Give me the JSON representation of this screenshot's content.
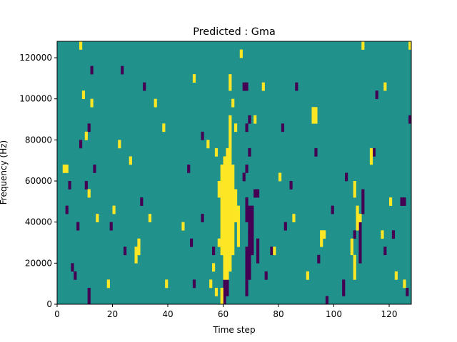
{
  "chart_data": {
    "type": "heatmap",
    "title": "Predicted : Gma",
    "xlabel": "Time step",
    "ylabel": "Frequency (Hz)",
    "xlim": [
      0,
      128
    ],
    "ylim": [
      0,
      128000
    ],
    "x_ticks": [
      0,
      20,
      40,
      60,
      80,
      100,
      120
    ],
    "y_ticks": [
      0,
      20000,
      40000,
      60000,
      80000,
      100000,
      120000
    ],
    "x_tick_labels": [
      "0",
      "20",
      "40",
      "60",
      "80",
      "100",
      "120"
    ],
    "y_tick_labels": [
      "0",
      "20000",
      "40000",
      "60000",
      "80000",
      "100000",
      "120000"
    ],
    "grid": false,
    "colormap": "viridis",
    "background_color": "#21918c",
    "colors": {
      "low": "#440154",
      "mid": "#21918c",
      "high": "#fde725"
    },
    "cell_height_hz": 4000,
    "band_low": [
      {
        "t": 60,
        "f0": 0,
        "f1": 12000
      },
      {
        "t": 61,
        "f0": 4000,
        "f1": 12000
      },
      {
        "t": 68,
        "f0": 4000,
        "f1": 28000
      },
      {
        "t": 69,
        "f0": 12000,
        "f1": 48000
      },
      {
        "t": 69,
        "f0": 20000,
        "f1": 36000
      },
      {
        "t": 70,
        "f0": 24000,
        "f1": 48000
      },
      {
        "t": 68,
        "f0": 40000,
        "f1": 52000
      },
      {
        "t": 71,
        "f0": 52000,
        "f1": 56000
      },
      {
        "t": 72,
        "f0": 52000,
        "f1": 56000
      },
      {
        "t": 72,
        "f0": 20000,
        "f1": 32000
      },
      {
        "t": 67,
        "f0": 60000,
        "f1": 64000
      },
      {
        "t": 68,
        "f0": 64000,
        "f1": 68000
      },
      {
        "t": 69,
        "f0": 72000,
        "f1": 76000
      },
      {
        "t": 68,
        "f0": 84000,
        "f1": 88000
      },
      {
        "t": 69,
        "f0": 88000,
        "f1": 92000
      },
      {
        "t": 68,
        "f0": 104000,
        "f1": 108000
      },
      {
        "t": 67,
        "f0": 104000,
        "f1": 108000
      },
      {
        "t": 110,
        "f0": 44000,
        "f1": 56000
      },
      {
        "t": 109,
        "f0": 20000,
        "f1": 40000
      },
      {
        "t": 107,
        "f0": 32000,
        "f1": 36000
      },
      {
        "t": 11,
        "f0": 0,
        "f1": 8000
      },
      {
        "t": 6,
        "f0": 12000,
        "f1": 16000
      },
      {
        "t": 5,
        "f0": 16000,
        "f1": 20000
      },
      {
        "t": 7,
        "f0": 36000,
        "f1": 40000
      },
      {
        "t": 3,
        "f0": 44000,
        "f1": 48000
      },
      {
        "t": 4,
        "f0": 56000,
        "f1": 60000
      },
      {
        "t": 10,
        "f0": 56000,
        "f1": 60000
      },
      {
        "t": 13,
        "f0": 64000,
        "f1": 68000
      },
      {
        "t": 8,
        "f0": 76000,
        "f1": 80000
      },
      {
        "t": 11,
        "f0": 84000,
        "f1": 88000
      },
      {
        "t": 12,
        "f0": 112000,
        "f1": 116000
      },
      {
        "t": 24,
        "f0": 24000,
        "f1": 28000
      },
      {
        "t": 19,
        "f0": 36000,
        "f1": 40000
      },
      {
        "t": 30,
        "f0": 48000,
        "f1": 52000
      },
      {
        "t": 23,
        "f0": 112000,
        "f1": 116000
      },
      {
        "t": 31,
        "f0": 104000,
        "f1": 108000
      },
      {
        "t": 49,
        "f0": 8000,
        "f1": 12000
      },
      {
        "t": 48,
        "f0": 28000,
        "f1": 32000
      },
      {
        "t": 52,
        "f0": 40000,
        "f1": 44000
      },
      {
        "t": 56,
        "f0": 24000,
        "f1": 28000
      },
      {
        "t": 47,
        "f0": 64000,
        "f1": 68000
      },
      {
        "t": 52,
        "f0": 80000,
        "f1": 84000
      },
      {
        "t": 75,
        "f0": 12000,
        "f1": 16000
      },
      {
        "t": 77,
        "f0": 24000,
        "f1": 28000
      },
      {
        "t": 82,
        "f0": 36000,
        "f1": 40000
      },
      {
        "t": 84,
        "f0": 56000,
        "f1": 60000
      },
      {
        "t": 81,
        "f0": 84000,
        "f1": 88000
      },
      {
        "t": 86,
        "f0": 104000,
        "f1": 108000
      },
      {
        "t": 97,
        "f0": 0,
        "f1": 4000
      },
      {
        "t": 94,
        "f0": 20000,
        "f1": 24000
      },
      {
        "t": 99,
        "f0": 44000,
        "f1": 48000
      },
      {
        "t": 93,
        "f0": 72000,
        "f1": 76000
      },
      {
        "t": 103,
        "f0": 4000,
        "f1": 12000
      },
      {
        "t": 104,
        "f0": 60000,
        "f1": 64000
      },
      {
        "t": 114,
        "f0": 72000,
        "f1": 76000
      },
      {
        "t": 118,
        "f0": 24000,
        "f1": 28000
      },
      {
        "t": 121,
        "f0": 32000,
        "f1": 36000
      },
      {
        "t": 124,
        "f0": 48000,
        "f1": 52000
      },
      {
        "t": 125,
        "f0": 48000,
        "f1": 52000
      },
      {
        "t": 126,
        "f0": 4000,
        "f1": 8000
      },
      {
        "t": 115,
        "f0": 100000,
        "f1": 104000
      },
      {
        "t": 127,
        "f0": 88000,
        "f1": 92000
      }
    ],
    "band_high": [
      {
        "t": 60,
        "f0": 12000,
        "f1": 72000
      },
      {
        "t": 61,
        "f0": 12000,
        "f1": 76000
      },
      {
        "t": 62,
        "f0": 16000,
        "f1": 92000
      },
      {
        "t": 63,
        "f0": 24000,
        "f1": 68000
      },
      {
        "t": 59,
        "f0": 24000,
        "f1": 68000
      },
      {
        "t": 58,
        "f0": 52000,
        "f1": 60000
      },
      {
        "t": 64,
        "f0": 40000,
        "f1": 56000
      },
      {
        "t": 65,
        "f0": 28000,
        "f1": 48000
      },
      {
        "t": 62,
        "f0": 104000,
        "f1": 112000
      },
      {
        "t": 63,
        "f0": 96000,
        "f1": 100000
      },
      {
        "t": 64,
        "f0": 84000,
        "f1": 88000
      },
      {
        "t": 59,
        "f0": 0,
        "f1": 8000
      },
      {
        "t": 55,
        "f0": 8000,
        "f1": 12000
      },
      {
        "t": 56,
        "f0": 16000,
        "f1": 20000
      },
      {
        "t": 57,
        "f0": 72000,
        "f1": 76000
      },
      {
        "t": 58,
        "f0": 28000,
        "f1": 32000
      },
      {
        "t": 2,
        "f0": 64000,
        "f1": 68000
      },
      {
        "t": 3,
        "f0": 64000,
        "f1": 68000
      },
      {
        "t": 8,
        "f0": 124000,
        "f1": 128000
      },
      {
        "t": 9,
        "f0": 100000,
        "f1": 104000
      },
      {
        "t": 10,
        "f0": 80000,
        "f1": 84000
      },
      {
        "t": 11,
        "f0": 52000,
        "f1": 56000
      },
      {
        "t": 14,
        "f0": 40000,
        "f1": 44000
      },
      {
        "t": 12,
        "f0": 96000,
        "f1": 100000
      },
      {
        "t": 20,
        "f0": 44000,
        "f1": 48000
      },
      {
        "t": 18,
        "f0": 8000,
        "f1": 12000
      },
      {
        "t": 22,
        "f0": 76000,
        "f1": 80000
      },
      {
        "t": 26,
        "f0": 68000,
        "f1": 72000
      },
      {
        "t": 28,
        "f0": 20000,
        "f1": 28000
      },
      {
        "t": 29,
        "f0": 24000,
        "f1": 32000
      },
      {
        "t": 33,
        "f0": 40000,
        "f1": 44000
      },
      {
        "t": 35,
        "f0": 96000,
        "f1": 100000
      },
      {
        "t": 38,
        "f0": 84000,
        "f1": 88000
      },
      {
        "t": 39,
        "f0": 8000,
        "f1": 12000
      },
      {
        "t": 45,
        "f0": 36000,
        "f1": 40000
      },
      {
        "t": 49,
        "f0": 108000,
        "f1": 112000
      },
      {
        "t": 54,
        "f0": 76000,
        "f1": 80000
      },
      {
        "t": 57,
        "f0": 4000,
        "f1": 8000
      },
      {
        "t": 66,
        "f0": 120000,
        "f1": 124000
      },
      {
        "t": 71,
        "f0": 88000,
        "f1": 92000
      },
      {
        "t": 74,
        "f0": 104000,
        "f1": 108000
      },
      {
        "t": 78,
        "f0": 24000,
        "f1": 28000
      },
      {
        "t": 80,
        "f0": 60000,
        "f1": 64000
      },
      {
        "t": 85,
        "f0": 40000,
        "f1": 44000
      },
      {
        "t": 90,
        "f0": 12000,
        "f1": 16000
      },
      {
        "t": 92,
        "f0": 88000,
        "f1": 96000
      },
      {
        "t": 93,
        "f0": 88000,
        "f1": 96000
      },
      {
        "t": 95,
        "f0": 28000,
        "f1": 36000
      },
      {
        "t": 96,
        "f0": 32000,
        "f1": 36000
      },
      {
        "t": 108,
        "f0": 36000,
        "f1": 48000
      },
      {
        "t": 109,
        "f0": 40000,
        "f1": 44000
      },
      {
        "t": 106,
        "f0": 24000,
        "f1": 32000
      },
      {
        "t": 107,
        "f0": 12000,
        "f1": 24000
      },
      {
        "t": 107,
        "f0": 52000,
        "f1": 60000
      },
      {
        "t": 113,
        "f0": 68000,
        "f1": 76000
      },
      {
        "t": 117,
        "f0": 32000,
        "f1": 36000
      },
      {
        "t": 118,
        "f0": 104000,
        "f1": 108000
      },
      {
        "t": 120,
        "f0": 48000,
        "f1": 52000
      },
      {
        "t": 122,
        "f0": 12000,
        "f1": 16000
      },
      {
        "t": 125,
        "f0": 8000,
        "f1": 12000
      },
      {
        "t": 127,
        "f0": 124000,
        "f1": 128000
      },
      {
        "t": 110,
        "f0": 124000,
        "f1": 128000
      }
    ]
  }
}
